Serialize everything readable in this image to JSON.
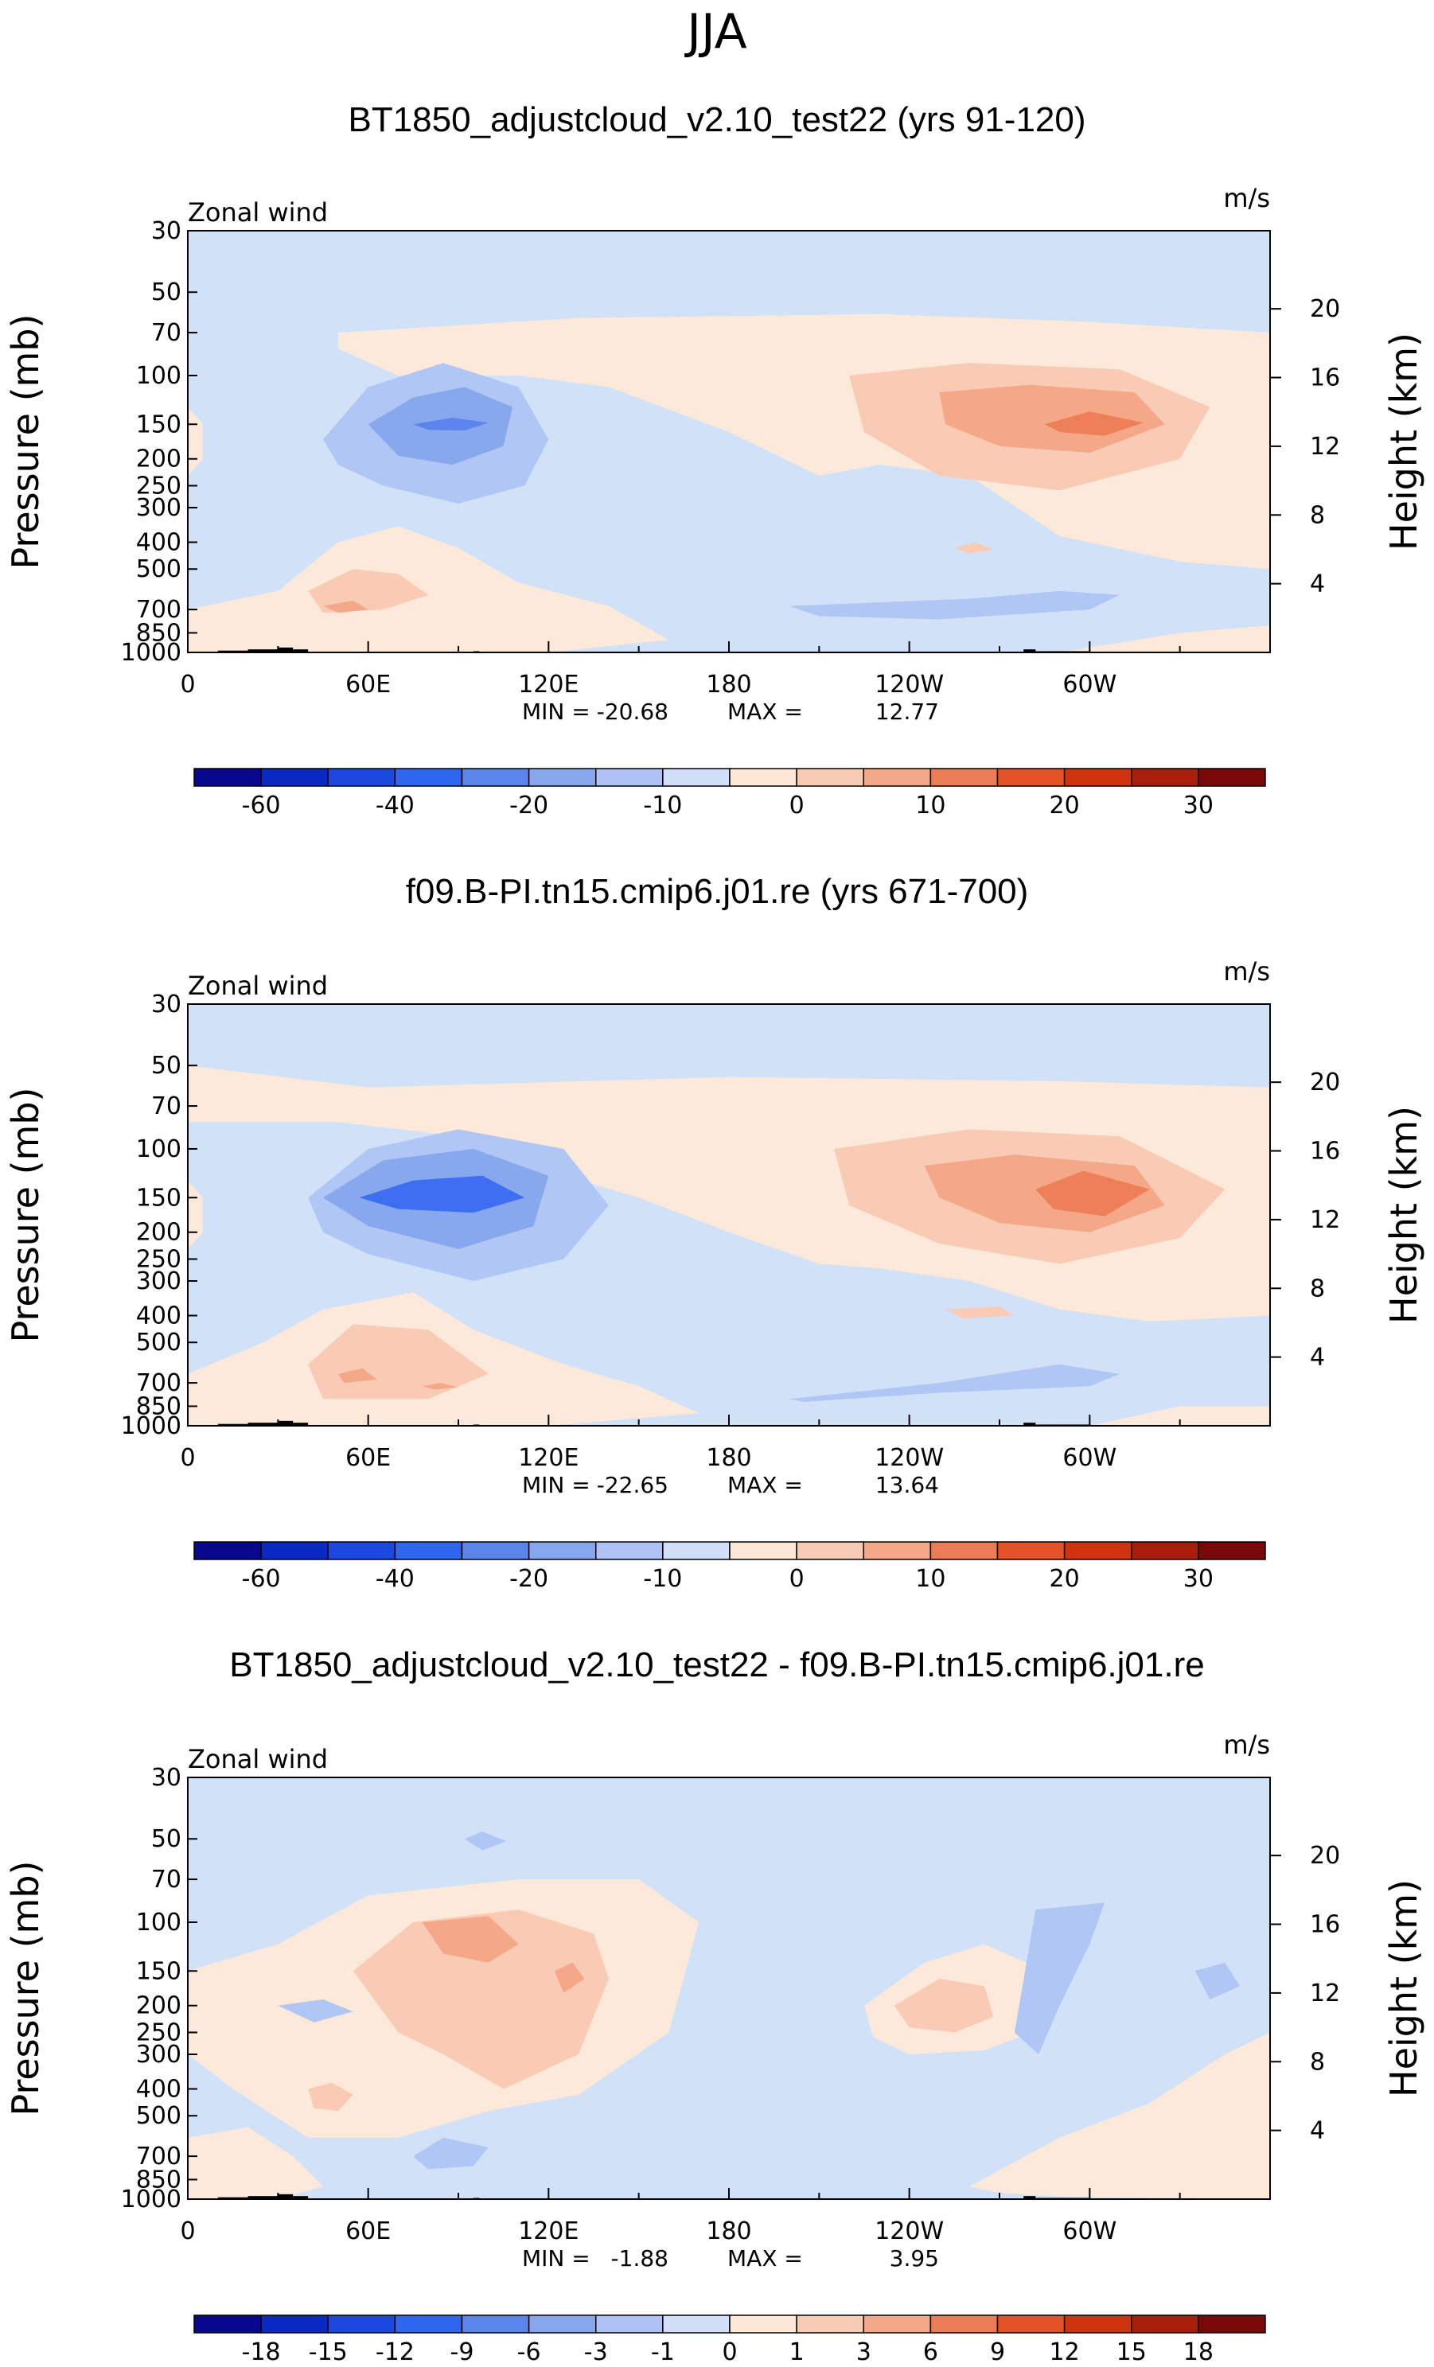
{
  "figure": {
    "season": "JJA"
  },
  "chart_data": [
    {
      "type": "contour",
      "title": "BT1850_adjustcloud_v2.10_test22 (yrs 91-120)",
      "left_label": "Zonal wind",
      "units": "m/s",
      "ylabel": "Pressure (mb)",
      "ylabel_right": "Height (km)",
      "pressure_ticks": [
        "30",
        "50",
        "70",
        "100",
        "150",
        "200",
        "250",
        "300",
        "400",
        "500",
        "700",
        "850",
        "1000"
      ],
      "height_ticks": [
        "20",
        "16",
        "12",
        "8",
        "4"
      ],
      "lon_ticks": [
        "0",
        "60E",
        "120E",
        "180",
        "120W",
        "60W"
      ],
      "stats": {
        "min_label": "MIN = ",
        "min": "-20.68",
        "max_label": "MAX = ",
        "max": "12.77"
      },
      "colorbar_labels": [
        "-60",
        "-40",
        "-20",
        "-10",
        "0",
        "10",
        "20",
        "30"
      ],
      "levels": [
        -70,
        -60,
        -50,
        -40,
        -30,
        -20,
        -15,
        -10,
        -5,
        0,
        5,
        10,
        15,
        20,
        25,
        30,
        35
      ]
    },
    {
      "type": "contour",
      "title": "f09.B-PI.tn15.cmip6.j01.re (yrs 671-700)",
      "left_label": "Zonal wind",
      "units": "m/s",
      "ylabel": "Pressure (mb)",
      "ylabel_right": "Height (km)",
      "pressure_ticks": [
        "30",
        "50",
        "70",
        "100",
        "150",
        "200",
        "250",
        "300",
        "400",
        "500",
        "700",
        "850",
        "1000"
      ],
      "height_ticks": [
        "20",
        "16",
        "12",
        "8",
        "4"
      ],
      "lon_ticks": [
        "0",
        "60E",
        "120E",
        "180",
        "120W",
        "60W"
      ],
      "stats": {
        "min_label": "MIN = ",
        "min": "-22.65",
        "max_label": "MAX = ",
        "max": "13.64"
      },
      "colorbar_labels": [
        "-60",
        "-40",
        "-20",
        "-10",
        "0",
        "10",
        "20",
        "30"
      ],
      "levels": [
        -70,
        -60,
        -50,
        -40,
        -30,
        -20,
        -15,
        -10,
        -5,
        0,
        5,
        10,
        15,
        20,
        25,
        30,
        35
      ]
    },
    {
      "type": "contour",
      "title": "BT1850_adjustcloud_v2.10_test22 - f09.B-PI.tn15.cmip6.j01.re",
      "left_label": "Zonal wind",
      "units": "m/s",
      "ylabel": "Pressure (mb)",
      "ylabel_right": "Height (km)",
      "pressure_ticks": [
        "30",
        "50",
        "70",
        "100",
        "150",
        "200",
        "250",
        "300",
        "400",
        "500",
        "700",
        "850",
        "1000"
      ],
      "height_ticks": [
        "20",
        "16",
        "12",
        "8",
        "4"
      ],
      "lon_ticks": [
        "0",
        "60E",
        "120E",
        "180",
        "120W",
        "60W"
      ],
      "stats": {
        "min_label": "MIN = ",
        "min": "-1.88",
        "max_label": "MAX = ",
        "max": "3.95"
      },
      "colorbar_labels": [
        "-18",
        "-15",
        "-12",
        "-9",
        "-6",
        "-3",
        "-1",
        "0",
        "1",
        "3",
        "6",
        "9",
        "12",
        "15",
        "18"
      ],
      "levels": [
        -21,
        -18,
        -15,
        -12,
        -9,
        -6,
        -3,
        -1,
        0,
        1,
        3,
        6,
        9,
        12,
        15,
        18,
        21
      ]
    }
  ],
  "palette": [
    "#08088e",
    "#0a28c4",
    "#1a48e0",
    "#2e66f0",
    "#5a86ec",
    "#86a6ee",
    "#aec2f4",
    "#d0def8",
    "#fde8d8",
    "#f8ccb4",
    "#f4a888",
    "#ec7c56",
    "#e45226",
    "#d0340e",
    "#a81e0a",
    "#7a0808"
  ],
  "field_colors": {
    "bg": "#d1e2f8",
    "bg_tint": "#c6d9f6",
    "light_neg": "#b0c6f4",
    "mid_neg": "#88a8ee",
    "strong_neg": "#5b84ec",
    "stronger_neg": "#3d6ff0",
    "light_pos": "#fde9d9",
    "mid_pos": "#f9cbb5",
    "strong_pos": "#f4a888",
    "stronger_pos": "#ed8058",
    "orography": "#000000"
  }
}
